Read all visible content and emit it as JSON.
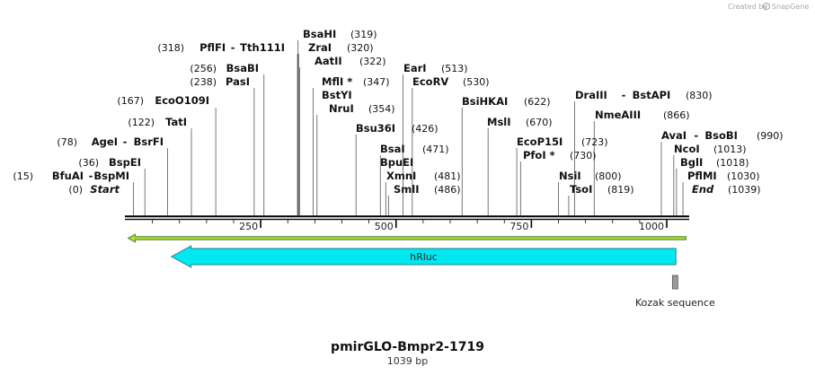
{
  "credit": {
    "prefix": "Created by",
    "brand": "SnapGene"
  },
  "sequence": {
    "name": "pmirGLO-Bmpr2-1719",
    "length_label": "1039 bp",
    "length": 1039
  },
  "ruler": {
    "ticks": [
      250,
      500,
      750,
      1000
    ]
  },
  "sites": [
    {
      "id": "start",
      "name": "Start",
      "pos": 0,
      "pos_text": "(0)",
      "kind": "end-marker"
    },
    {
      "id": "bfuai",
      "name": "BfuAI",
      "alt": "BspMI",
      "pos": 15,
      "pos_text": "(15)"
    },
    {
      "id": "bspei",
      "name": "BspEI",
      "pos": 36,
      "pos_text": "(36)"
    },
    {
      "id": "agei",
      "name": "AgeI",
      "alt": "BsrFI",
      "pos": 78,
      "pos_text": "(78)"
    },
    {
      "id": "tati",
      "name": "TatI",
      "pos": 122,
      "pos_text": "(122)"
    },
    {
      "id": "eco0109i",
      "name": "EcoO109I",
      "pos": 167,
      "pos_text": "(167)"
    },
    {
      "id": "pasi",
      "name": "PasI",
      "pos": 238,
      "pos_text": "(238)"
    },
    {
      "id": "bsabi",
      "name": "BsaBI",
      "pos": 256,
      "pos_text": "(256)"
    },
    {
      "id": "pflfi",
      "name": "PflFI",
      "alt": "Tth111I",
      "pos": 318,
      "pos_text": "(318)"
    },
    {
      "id": "bsahi",
      "name": "BsaHI",
      "pos": 319,
      "pos_text": "(319)"
    },
    {
      "id": "zrai",
      "name": "ZraI",
      "pos": 320,
      "pos_text": "(320)"
    },
    {
      "id": "aatii",
      "name": "AatII",
      "pos": 322,
      "pos_text": "(322)"
    },
    {
      "id": "mfli",
      "name": "MflI *",
      "pos": 347,
      "pos_text": "(347)"
    },
    {
      "id": "bstyi",
      "name": "BstYI",
      "pos": 347,
      "pos_text": ""
    },
    {
      "id": "nrui",
      "name": "NruI",
      "pos": 354,
      "pos_text": "(354)"
    },
    {
      "id": "bsu36i",
      "name": "Bsu36I",
      "pos": 426,
      "pos_text": "(426)"
    },
    {
      "id": "bsai",
      "name": "BsaI",
      "pos": 471,
      "pos_text": "(471)"
    },
    {
      "id": "bpuei",
      "name": "BpuEI",
      "pos": 471,
      "pos_text": ""
    },
    {
      "id": "eari",
      "name": "EarI",
      "pos": 513,
      "pos_text": "(513)"
    },
    {
      "id": "ecorv",
      "name": "EcoRV",
      "pos": 530,
      "pos_text": "(530)"
    },
    {
      "id": "xmni",
      "name": "XmnI",
      "pos": 481,
      "pos_text": "(481)"
    },
    {
      "id": "smli",
      "name": "SmlI",
      "pos": 486,
      "pos_text": "(486)"
    },
    {
      "id": "bsihkai",
      "name": "BsiHKAI",
      "pos": 622,
      "pos_text": "(622)"
    },
    {
      "id": "msli",
      "name": "MslI",
      "pos": 670,
      "pos_text": "(670)"
    },
    {
      "id": "ecop15i",
      "name": "EcoP15I",
      "pos": 723,
      "pos_text": "(723)"
    },
    {
      "id": "pfoi",
      "name": "PfoI *",
      "pos": 730,
      "pos_text": "(730)"
    },
    {
      "id": "nsii",
      "name": "NsiI",
      "pos": 800,
      "pos_text": "(800)"
    },
    {
      "id": "tsoi",
      "name": "TsoI",
      "pos": 819,
      "pos_text": "(819)"
    },
    {
      "id": "draiii",
      "name": "DraIII",
      "alt": "BstAPI",
      "pos": 830,
      "pos_text": "(830)"
    },
    {
      "id": "nmeaiii",
      "name": "NmeAIII",
      "pos": 866,
      "pos_text": "(866)"
    },
    {
      "id": "avai",
      "name": "AvaI",
      "alt": "BsoBI",
      "pos": 990,
      "pos_text": "(990)"
    },
    {
      "id": "ncoi",
      "name": "NcoI",
      "pos": 1013,
      "pos_text": "(1013)"
    },
    {
      "id": "bglii",
      "name": "BglI",
      "pos": 1018,
      "pos_text": "(1018)"
    },
    {
      "id": "pflmi",
      "name": "PflMI",
      "pos": 1030,
      "pos_text": "(1030)"
    },
    {
      "id": "end",
      "name": "End",
      "pos": 1039,
      "pos_text": "(1039)",
      "kind": "end-marker"
    }
  ],
  "features": [
    {
      "id": "hrluc",
      "name": "hRluc",
      "start": 85,
      "end": 1017,
      "direction": "reverse",
      "color": "#00e8f0",
      "outline": "#2c7a80"
    },
    {
      "id": "kozak",
      "name": "Kozak sequence",
      "start": 1012,
      "end": 1019,
      "color": "#9a9a9a"
    }
  ],
  "orf_arrow": {
    "start": 0,
    "end": 1039,
    "direction": "reverse",
    "color": "#a9e234",
    "outline": "#3e6b16"
  },
  "colors": {
    "line": "#000000",
    "tick": "#777777"
  }
}
